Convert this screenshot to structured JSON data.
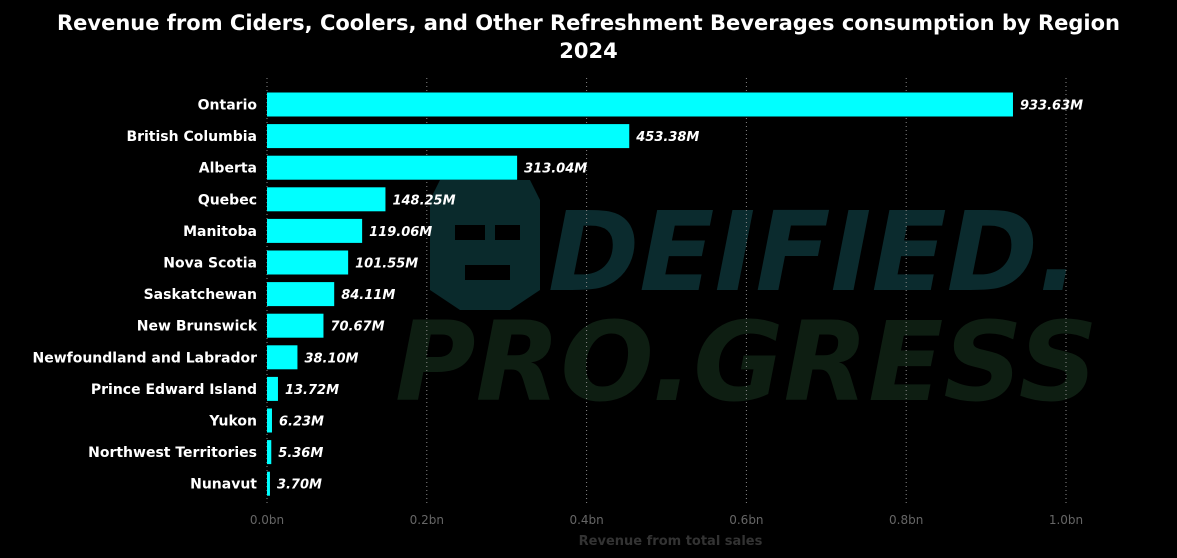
{
  "chart_data": {
    "type": "bar",
    "orientation": "horizontal",
    "title_line1": "Revenue from Ciders, Coolers, and Other Refreshment Beverages consumption by Region",
    "title_line2": "2024",
    "xlabel": "Revenue from total sales",
    "ylabel": "",
    "xlim": [
      0,
      1.0
    ],
    "x_ticks": [
      "0.0bn",
      "0.2bn",
      "0.4bn",
      "0.6bn",
      "0.8bn",
      "1.0bn"
    ],
    "x_tick_values": [
      0,
      0.2,
      0.4,
      0.6,
      0.8,
      1.0
    ],
    "grid": "vertical-dotted",
    "categories": [
      "Ontario",
      "British Columbia",
      "Alberta",
      "Quebec",
      "Manitoba",
      "Nova Scotia",
      "Saskatchewan",
      "New Brunswick",
      "Newfoundland and Labrador",
      "Prince Edward Island",
      "Yukon",
      "Northwest Territories",
      "Nunavut"
    ],
    "values": [
      933.63,
      453.38,
      313.04,
      148.25,
      119.06,
      101.55,
      84.11,
      70.67,
      38.1,
      13.72,
      6.23,
      5.36,
      3.7
    ],
    "value_unit": "M",
    "data_labels": [
      "933.63M",
      "453.38M",
      "313.04M",
      "148.25M",
      "119.06M",
      "101.55M",
      "84.11M",
      "70.67M",
      "38.10M",
      "13.72M",
      "6.23M",
      "5.36M",
      "3.70M"
    ],
    "bar_color": "#00FFFF"
  },
  "watermark": {
    "line1": "DEIFIED.",
    "line2": "PRO.GRESS"
  },
  "colors": {
    "background": "#000000",
    "text": "#FFFFFF",
    "axis_text": "#666666",
    "grid": "#888888"
  }
}
